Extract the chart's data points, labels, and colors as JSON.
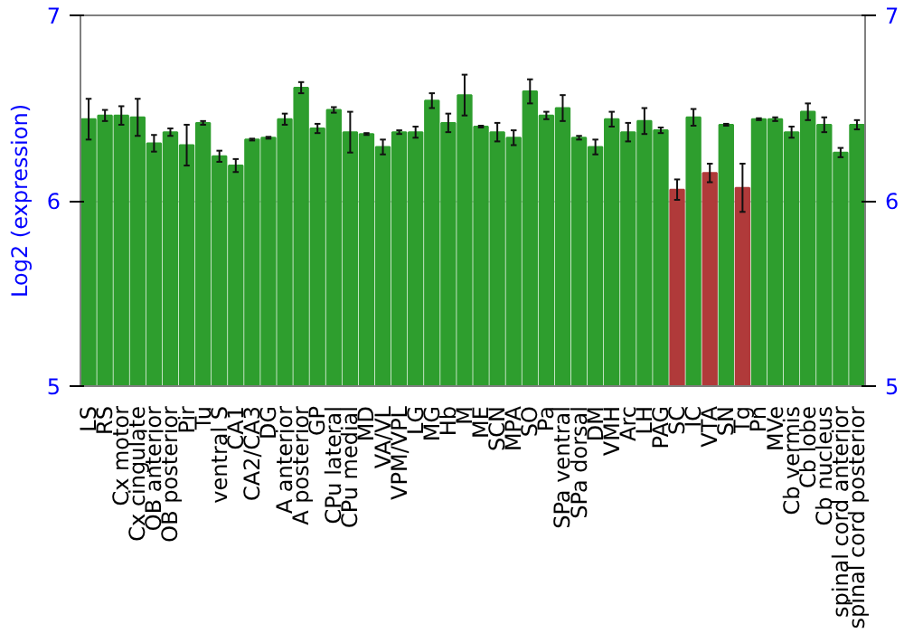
{
  "chart_data": {
    "type": "bar",
    "ylabel": "Log2 (expression)",
    "categories": [
      "LS",
      "RS",
      "Cx motor",
      "Cx cingulate",
      "OB anterior",
      "OB posterior",
      "Pir",
      "Tu",
      "ventral S",
      "CA1",
      "CA2/CA3",
      "DG",
      "A anterior",
      "A posterior",
      "GP",
      "CPu lateral",
      "CPu medial",
      "MD",
      "VA/VL",
      "VPM/VPL",
      "LG",
      "MG",
      "Hb",
      "M",
      "ME",
      "SCN",
      "MPA",
      "SO",
      "Pa",
      "SPa ventral",
      "SPa dorsal",
      "DM",
      "VMH",
      "Arc",
      "LH",
      "PAG",
      "SC",
      "IC",
      "VTA",
      "SN",
      "Tg",
      "Pn",
      "MVe",
      "Cb vermis",
      "Cb lobe",
      "Cb nucleus",
      "spinal cord anterior",
      "spinal cord posterior"
    ],
    "values": [
      6.44,
      6.46,
      6.46,
      6.45,
      6.31,
      6.37,
      6.3,
      6.42,
      6.24,
      6.19,
      6.33,
      6.34,
      6.44,
      6.61,
      6.39,
      6.49,
      6.37,
      6.36,
      6.29,
      6.37,
      6.37,
      6.54,
      6.42,
      6.57,
      6.4,
      6.37,
      6.34,
      6.59,
      6.46,
      6.5,
      6.34,
      6.29,
      6.44,
      6.37,
      6.43,
      6.38,
      6.06,
      6.45,
      6.15,
      6.41,
      6.07,
      6.44,
      6.44,
      6.37,
      6.48,
      6.41,
      6.26,
      6.41
    ],
    "errors": [
      0.11,
      0.03,
      0.05,
      0.1,
      0.045,
      0.02,
      0.11,
      0.01,
      0.03,
      0.035,
      0.005,
      0.005,
      0.03,
      0.03,
      0.025,
      0.015,
      0.11,
      0.005,
      0.04,
      0.01,
      0.03,
      0.04,
      0.05,
      0.11,
      0.005,
      0.05,
      0.04,
      0.065,
      0.02,
      0.07,
      0.01,
      0.04,
      0.04,
      0.05,
      0.07,
      0.015,
      0.055,
      0.045,
      0.05,
      0.005,
      0.13,
      0.005,
      0.01,
      0.03,
      0.045,
      0.04,
      0.025,
      0.025
    ],
    "colors": [
      "#2e9e2e",
      "#2e9e2e",
      "#2e9e2e",
      "#2e9e2e",
      "#2e9e2e",
      "#2e9e2e",
      "#2e9e2e",
      "#2e9e2e",
      "#2e9e2e",
      "#2e9e2e",
      "#2e9e2e",
      "#2e9e2e",
      "#2e9e2e",
      "#2e9e2e",
      "#2e9e2e",
      "#2e9e2e",
      "#2e9e2e",
      "#2e9e2e",
      "#2e9e2e",
      "#2e9e2e",
      "#2e9e2e",
      "#2e9e2e",
      "#2e9e2e",
      "#2e9e2e",
      "#2e9e2e",
      "#2e9e2e",
      "#2e9e2e",
      "#2e9e2e",
      "#2e9e2e",
      "#2e9e2e",
      "#2e9e2e",
      "#2e9e2e",
      "#2e9e2e",
      "#2e9e2e",
      "#2e9e2e",
      "#2e9e2e",
      "#b03a3a",
      "#2e9e2e",
      "#b03a3a",
      "#2e9e2e",
      "#b03a3a",
      "#2e9e2e",
      "#2e9e2e",
      "#2e9e2e",
      "#2e9e2e",
      "#2e9e2e",
      "#2e9e2e",
      "#2e9e2e"
    ],
    "ylim": [
      5,
      7
    ],
    "yticks": [
      5,
      6,
      7
    ],
    "y2lim": [
      5,
      7
    ],
    "y2ticks": [
      5,
      6,
      7
    ],
    "grid": "y"
  }
}
